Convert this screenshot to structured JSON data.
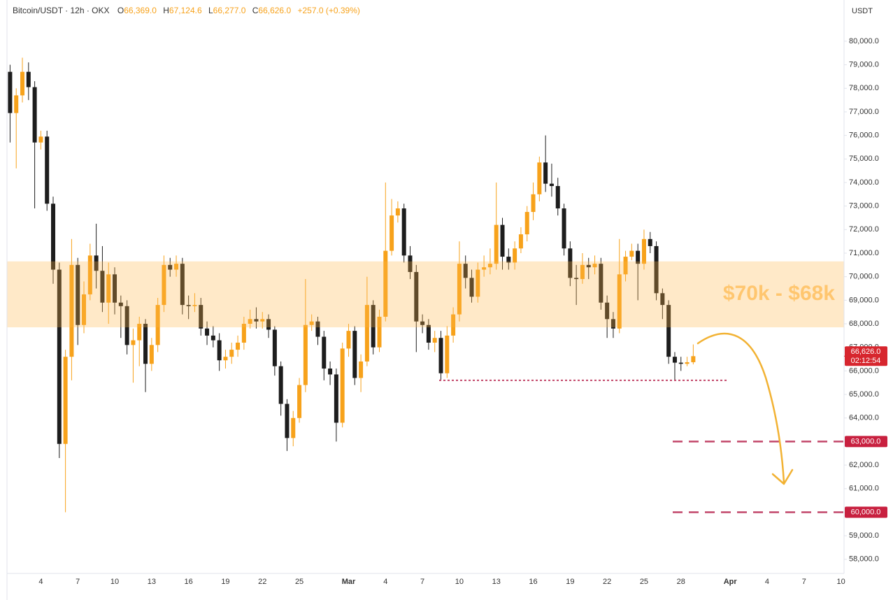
{
  "chart_data": {
    "type": "candlestick",
    "header": {
      "symbol": "Bitcoin/USDT · 12h · OKX",
      "ohlc": [
        [
          "O",
          "66,369.0"
        ],
        [
          "H",
          "67,124.6"
        ],
        [
          "L",
          "66,277.0"
        ],
        [
          "C",
          "66,626.0"
        ]
      ],
      "change": "+257.0 (+0.39%)"
    },
    "y_axis_unit": "USDT",
    "up_color": "#f7a21b",
    "down_color": "#1d1d1d",
    "grid": false,
    "ylim": [
      57400,
      81750
    ],
    "yticks": [
      {
        "value": 58000,
        "label": "58,000.0"
      },
      {
        "value": 59000,
        "label": "59,000.0"
      },
      {
        "value": 60000,
        "label": "60,000.0"
      },
      {
        "value": 61000,
        "label": "61,000.0"
      },
      {
        "value": 62000,
        "label": "62,000.0"
      },
      {
        "value": 63000,
        "label": "63,000.0"
      },
      {
        "value": 64000,
        "label": "64,000.0"
      },
      {
        "value": 65000,
        "label": "65,000.0"
      },
      {
        "value": 66000,
        "label": "66,000.0"
      },
      {
        "value": 67000,
        "label": "67,000.0"
      },
      {
        "value": 68000,
        "label": "68,000.0"
      },
      {
        "value": 69000,
        "label": "69,000.0"
      },
      {
        "value": 70000,
        "label": "70,000.0"
      },
      {
        "value": 71000,
        "label": "71,000.0"
      },
      {
        "value": 72000,
        "label": "72,000.0"
      },
      {
        "value": 73000,
        "label": "73,000.0"
      },
      {
        "value": 74000,
        "label": "74,000.0"
      },
      {
        "value": 75000,
        "label": "75,000.0"
      },
      {
        "value": 76000,
        "label": "76,000.0"
      },
      {
        "value": 77000,
        "label": "77,000.0"
      },
      {
        "value": 78000,
        "label": "78,000.0"
      },
      {
        "value": 79000,
        "label": "79,000.0"
      },
      {
        "value": 80000,
        "label": "80,000.0"
      }
    ],
    "categories": [
      null,
      null,
      null,
      null,
      null,
      "4",
      null,
      null,
      null,
      null,
      null,
      "7",
      null,
      null,
      null,
      null,
      null,
      "10",
      null,
      null,
      null,
      null,
      null,
      "13",
      null,
      null,
      null,
      null,
      null,
      "16",
      null,
      null,
      null,
      null,
      null,
      "19",
      null,
      null,
      null,
      null,
      null,
      "22",
      null,
      null,
      null,
      null,
      null,
      "25",
      null,
      null,
      null,
      null,
      null,
      null,
      null,
      "Mar",
      null,
      null,
      null,
      null,
      null,
      "4",
      null,
      null,
      null,
      null,
      null,
      "7",
      null,
      null,
      null,
      null,
      null,
      "10",
      null,
      null,
      null,
      null,
      null,
      "13",
      null,
      null,
      null,
      null,
      null,
      "16",
      null,
      null,
      null,
      null,
      null,
      "19",
      null,
      null,
      null,
      null,
      null,
      "22",
      null,
      null,
      null,
      null,
      null,
      "25",
      null,
      null,
      null,
      null,
      null,
      "28",
      null,
      null,
      null,
      null,
      null,
      null,
      null,
      "Apr",
      null,
      null,
      null,
      null,
      null,
      "4",
      null,
      null,
      null,
      null,
      null,
      "7",
      null,
      null,
      null,
      null,
      null,
      "10"
    ],
    "bold_categories": [
      "Mar",
      "Apr"
    ],
    "open": [
      78700,
      76950,
      77700,
      78700,
      78050,
      75700,
      75950,
      73100,
      70300,
      62900,
      66600,
      70500,
      67950,
      69250,
      70900,
      70250,
      68900,
      70100,
      68900,
      68750,
      67100,
      67300,
      68000,
      66300,
      67100,
      68800,
      70500,
      70300,
      70550,
      68800,
      68750,
      68800,
      67800,
      67500,
      67300,
      66450,
      66600,
      66900,
      67200,
      68000,
      68200,
      68100,
      68200,
      67750,
      66200,
      64600,
      63150,
      64000,
      65400,
      67950,
      68100,
      67450,
      66100,
      65850,
      63800,
      66950,
      67700,
      65700,
      66400,
      68800,
      67000,
      68300,
      71100,
      72600,
      72900,
      70900,
      70200,
      68100,
      67950,
      67200,
      67400,
      65900,
      67500,
      68400,
      70550,
      69950,
      69150,
      70300,
      70400,
      70550,
      72200,
      70850,
      70600,
      71200,
      71800,
      72750,
      73500,
      74850,
      73950,
      73850,
      72900,
      71200,
      69950,
      69900,
      70500,
      70400,
      70550,
      68900,
      68200,
      67800,
      70100,
      70850,
      71100,
      70550,
      71600,
      71300,
      69300,
      68800,
      66600,
      66350,
      66300,
      66369,
      null,
      null,
      null,
      null,
      null,
      null,
      null,
      null,
      null,
      null,
      null,
      null,
      null,
      null,
      null,
      null,
      null,
      null,
      null,
      null,
      null,
      null,
      null,
      null
    ],
    "high": [
      79000,
      78000,
      79300,
      79100,
      78300,
      76200,
      76200,
      73400,
      70600,
      66900,
      71600,
      70800,
      69800,
      71400,
      72250,
      71300,
      70600,
      70400,
      69200,
      69000,
      67800,
      68300,
      68200,
      67400,
      69100,
      70900,
      70800,
      70900,
      70800,
      69200,
      69300,
      69100,
      68100,
      67900,
      67600,
      66900,
      67200,
      67500,
      68300,
      68600,
      68700,
      68500,
      68400,
      67900,
      66400,
      64800,
      64300,
      65700,
      69900,
      68400,
      68300,
      67700,
      66400,
      66100,
      67200,
      68000,
      67900,
      66700,
      70000,
      69000,
      68600,
      74000,
      73300,
      73200,
      73100,
      71300,
      70500,
      68400,
      68200,
      67700,
      67700,
      67900,
      68700,
      71500,
      70900,
      70300,
      70600,
      70900,
      71200,
      74000,
      72500,
      71200,
      71500,
      72100,
      73000,
      74000,
      75100,
      76000,
      74800,
      74200,
      73100,
      71500,
      70500,
      71000,
      70800,
      70900,
      70800,
      69200,
      68500,
      71600,
      71100,
      71400,
      71400,
      72000,
      71900,
      71500,
      69500,
      69000,
      66800,
      66600,
      66600,
      67124.6,
      null,
      null,
      null,
      null,
      null,
      null,
      null,
      null,
      null,
      null,
      null,
      null,
      null,
      null,
      null,
      null,
      null,
      null,
      null,
      null,
      null,
      null,
      null,
      null
    ],
    "low": [
      75700,
      74600,
      77400,
      77500,
      72900,
      75400,
      72800,
      69700,
      62300,
      60000,
      65600,
      67100,
      67600,
      69000,
      69500,
      68500,
      68000,
      68400,
      67400,
      66700,
      65500,
      66200,
      65100,
      66000,
      66800,
      68500,
      70000,
      70000,
      68400,
      68200,
      68500,
      67500,
      67100,
      67000,
      66000,
      66100,
      66300,
      66600,
      66900,
      67800,
      67800,
      67800,
      67400,
      65800,
      64100,
      62600,
      62800,
      63800,
      65100,
      67700,
      67100,
      65600,
      65400,
      63000,
      63600,
      66600,
      65400,
      65100,
      66200,
      66700,
      66800,
      68100,
      70900,
      72300,
      70600,
      69900,
      66800,
      67600,
      66900,
      66800,
      65600,
      65700,
      67200,
      68100,
      69500,
      68900,
      68900,
      70000,
      70100,
      70300,
      70300,
      70300,
      70300,
      71000,
      71500,
      72400,
      73200,
      73600,
      73400,
      72600,
      70900,
      69600,
      68800,
      69700,
      69900,
      70100,
      68600,
      67400,
      67400,
      67600,
      69800,
      70700,
      69000,
      70300,
      71000,
      69000,
      68200,
      66300,
      65600,
      66000,
      66200,
      66277,
      null,
      null,
      null,
      null,
      null,
      null,
      null,
      null,
      null,
      null,
      null,
      null,
      null,
      null,
      null,
      null,
      null,
      null,
      null,
      null,
      null,
      null,
      null,
      null
    ],
    "close": [
      76950,
      77700,
      78700,
      78050,
      75700,
      75950,
      73100,
      70300,
      62900,
      66600,
      70500,
      67950,
      69250,
      70900,
      70250,
      68900,
      70100,
      68900,
      68750,
      67100,
      67300,
      68000,
      66300,
      67100,
      68800,
      70500,
      70300,
      70550,
      68800,
      68750,
      68800,
      67800,
      67500,
      67300,
      66450,
      66600,
      66900,
      67200,
      68000,
      68200,
      68100,
      68200,
      67750,
      66200,
      64600,
      63150,
      64000,
      65400,
      67950,
      68100,
      67450,
      66100,
      65850,
      63800,
      66950,
      67700,
      65700,
      66400,
      68800,
      67000,
      68300,
      71100,
      72600,
      72900,
      70900,
      70200,
      68100,
      67950,
      67200,
      67400,
      65900,
      67500,
      68400,
      70550,
      69950,
      69150,
      70300,
      70400,
      70550,
      72200,
      70850,
      70600,
      71200,
      71800,
      72750,
      73500,
      74850,
      73950,
      73850,
      72900,
      71200,
      69950,
      69900,
      70500,
      70400,
      70550,
      68900,
      68200,
      67800,
      70100,
      70850,
      71100,
      70550,
      71600,
      71300,
      69300,
      68800,
      66600,
      66350,
      66300,
      66369,
      66626,
      null,
      null,
      null,
      null,
      null,
      null,
      null,
      null,
      null,
      null,
      null,
      null,
      null,
      null,
      null,
      null,
      null,
      null,
      null,
      null,
      null,
      null,
      null,
      null
    ],
    "zone": {
      "from": 67850,
      "to": 70650,
      "label": "$70k - $68k",
      "color": "#ffb648"
    },
    "support": {
      "value": 65600,
      "color": "#c2476a"
    },
    "levels": [
      {
        "value": 63000,
        "label": "63,000.0",
        "color": "#c2476a",
        "tag_color": "#c8203f"
      },
      {
        "value": 60000,
        "label": "60,000.0",
        "color": "#c2476a",
        "tag_color": "#c8203f"
      }
    ],
    "last_price": {
      "value": 66626,
      "label": "66,626.0",
      "countdown": "02:12:54",
      "color": "#d7262e"
    },
    "arrow_color": "#f2b233"
  }
}
